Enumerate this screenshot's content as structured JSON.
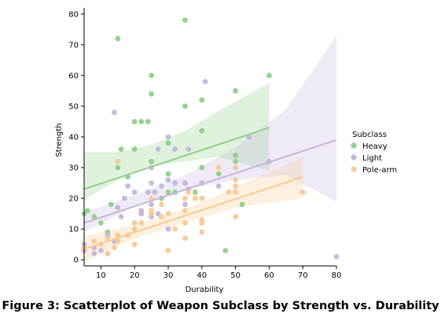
{
  "caption": "Figure 3: Scatterplot of Weapon Subclass by Strength vs. Durability",
  "chart_data": {
    "type": "scatter",
    "xlabel": "Durability",
    "ylabel": "Strength",
    "xlim": [
      5,
      80
    ],
    "ylim": [
      -2,
      82
    ],
    "xticks": [
      10,
      20,
      30,
      40,
      50,
      60,
      70,
      80
    ],
    "yticks": [
      0,
      10,
      20,
      30,
      40,
      50,
      60,
      70,
      80
    ],
    "grid": false,
    "legend": {
      "title": "Subclass",
      "position": "right"
    },
    "series": [
      {
        "name": "Heavy",
        "color": "#8fcf8a",
        "points": [
          [
            5,
            15
          ],
          [
            6,
            16
          ],
          [
            8,
            14
          ],
          [
            10,
            12
          ],
          [
            12,
            9
          ],
          [
            13,
            18
          ],
          [
            15,
            72
          ],
          [
            15,
            30
          ],
          [
            16,
            36
          ],
          [
            18,
            27
          ],
          [
            20,
            36
          ],
          [
            20,
            45
          ],
          [
            22,
            45
          ],
          [
            24,
            45
          ],
          [
            25,
            32
          ],
          [
            25,
            54
          ],
          [
            25,
            60
          ],
          [
            28,
            20
          ],
          [
            30,
            38
          ],
          [
            30,
            28
          ],
          [
            30,
            22
          ],
          [
            32,
            22
          ],
          [
            35,
            78
          ],
          [
            35,
            50
          ],
          [
            38,
            22
          ],
          [
            40,
            52
          ],
          [
            40,
            30
          ],
          [
            40,
            42
          ],
          [
            45,
            28
          ],
          [
            47,
            3
          ],
          [
            50,
            55
          ],
          [
            50,
            34
          ],
          [
            50,
            32
          ],
          [
            52,
            18
          ],
          [
            60,
            60
          ]
        ],
        "fit": {
          "x": [
            5,
            60
          ],
          "y": [
            23.0,
            43.0
          ]
        },
        "band_lower": [
          [
            5,
            19.5
          ],
          [
            15,
            26.0
          ],
          [
            25,
            30.5
          ],
          [
            35,
            32.0
          ],
          [
            45,
            33.5
          ],
          [
            60,
            29.0
          ]
        ],
        "band_upper": [
          [
            5,
            35.0
          ],
          [
            15,
            35.0
          ],
          [
            25,
            37.5
          ],
          [
            35,
            42.0
          ],
          [
            45,
            48.5
          ],
          [
            60,
            57.5
          ]
        ]
      },
      {
        "name": "Light",
        "color": "#c4b5db",
        "points": [
          [
            5,
            3
          ],
          [
            5,
            5
          ],
          [
            8,
            2
          ],
          [
            8,
            4
          ],
          [
            10,
            3
          ],
          [
            12,
            2
          ],
          [
            12,
            8
          ],
          [
            14,
            6
          ],
          [
            14,
            48
          ],
          [
            15,
            17
          ],
          [
            16,
            14
          ],
          [
            17,
            20
          ],
          [
            18,
            24
          ],
          [
            20,
            10
          ],
          [
            20,
            22
          ],
          [
            22,
            15
          ],
          [
            22,
            16
          ],
          [
            24,
            22
          ],
          [
            25,
            14
          ],
          [
            25,
            18
          ],
          [
            25,
            25
          ],
          [
            25,
            30
          ],
          [
            26,
            22
          ],
          [
            27,
            15
          ],
          [
            27,
            36
          ],
          [
            28,
            24
          ],
          [
            30,
            10
          ],
          [
            30,
            26
          ],
          [
            30,
            40
          ],
          [
            32,
            25
          ],
          [
            32,
            36
          ],
          [
            35,
            18
          ],
          [
            35,
            25
          ],
          [
            36,
            23
          ],
          [
            36,
            36
          ],
          [
            40,
            25
          ],
          [
            41,
            58
          ],
          [
            45,
            24
          ],
          [
            50,
            30
          ],
          [
            54,
            40
          ],
          [
            60,
            32
          ],
          [
            80,
            1
          ]
        ],
        "fit": {
          "x": [
            5,
            80
          ],
          "y": [
            12.0,
            39.0
          ]
        },
        "band_lower": [
          [
            5,
            9.0
          ],
          [
            20,
            17.5
          ],
          [
            35,
            23.0
          ],
          [
            50,
            26.0
          ],
          [
            65,
            27.5
          ],
          [
            80,
            19.0
          ]
        ],
        "band_upper": [
          [
            5,
            15.5
          ],
          [
            20,
            21.0
          ],
          [
            35,
            27.5
          ],
          [
            50,
            36.5
          ],
          [
            65,
            49.0
          ],
          [
            80,
            73.0
          ]
        ]
      },
      {
        "name": "Pole-arm",
        "color": "#f9c893",
        "points": [
          [
            5,
            4
          ],
          [
            8,
            6
          ],
          [
            10,
            5
          ],
          [
            12,
            2
          ],
          [
            12,
            7
          ],
          [
            14,
            4
          ],
          [
            15,
            6
          ],
          [
            15,
            32
          ],
          [
            15,
            8
          ],
          [
            18,
            8
          ],
          [
            20,
            5
          ],
          [
            20,
            10
          ],
          [
            20,
            12
          ],
          [
            22,
            12
          ],
          [
            25,
            15
          ],
          [
            25,
            20
          ],
          [
            25,
            16
          ],
          [
            28,
            14
          ],
          [
            28,
            18
          ],
          [
            30,
            3
          ],
          [
            30,
            15
          ],
          [
            32,
            10
          ],
          [
            35,
            7
          ],
          [
            35,
            12
          ],
          [
            35,
            16
          ],
          [
            35,
            20
          ],
          [
            36,
            22
          ],
          [
            38,
            20
          ],
          [
            40,
            9
          ],
          [
            40,
            12
          ],
          [
            40,
            13
          ],
          [
            40,
            20
          ],
          [
            45,
            30
          ],
          [
            48,
            22
          ],
          [
            50,
            14
          ],
          [
            50,
            22
          ],
          [
            50,
            24
          ],
          [
            50,
            26
          ],
          [
            50,
            30
          ],
          [
            70,
            22
          ]
        ],
        "fit": {
          "x": [
            5,
            70
          ],
          "y": [
            3.5,
            27.0
          ]
        },
        "band_lower": [
          [
            5,
            -0.5
          ],
          [
            20,
            7.0
          ],
          [
            35,
            12.0
          ],
          [
            50,
            17.0
          ],
          [
            70,
            20.0
          ]
        ],
        "band_upper": [
          [
            5,
            7.5
          ],
          [
            20,
            11.5
          ],
          [
            35,
            16.5
          ],
          [
            50,
            23.5
          ],
          [
            70,
            33.5
          ]
        ]
      }
    ]
  }
}
